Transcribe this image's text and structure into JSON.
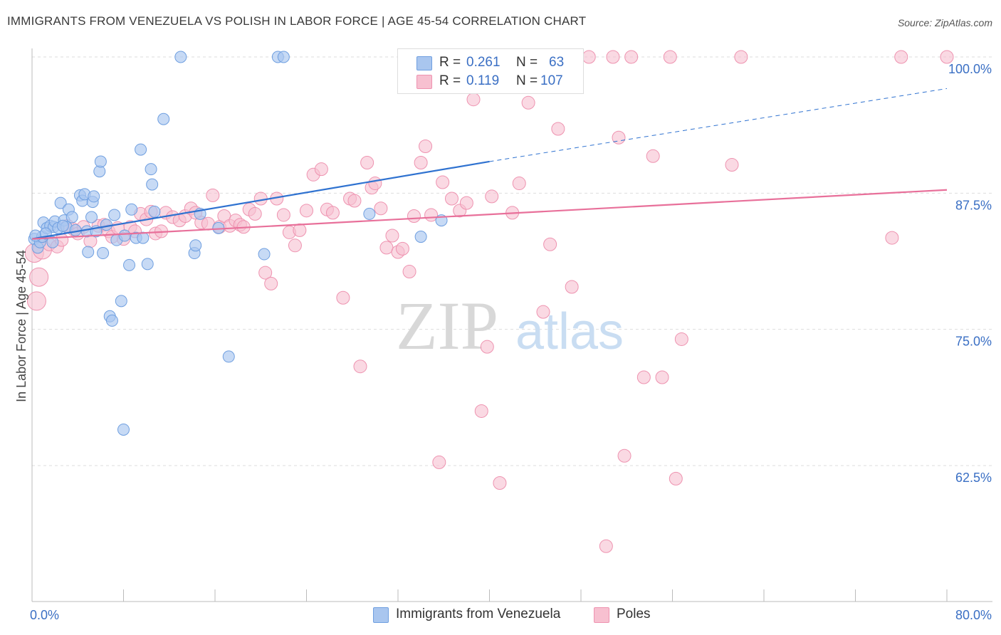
{
  "title": "IMMIGRANTS FROM VENEZUELA VS POLISH IN LABOR FORCE | AGE 45-54 CORRELATION CHART",
  "source": "Source: ZipAtlas.com",
  "watermark": {
    "zip": "ZIP",
    "atlas": "atlas"
  },
  "legend": {
    "row1": {
      "r_label": "R =",
      "r_value": "0.261",
      "n_label": "N =",
      "n_value": "63"
    },
    "row2": {
      "r_label": "R =",
      "r_value": "0.119",
      "n_label": "N =",
      "n_value": "107"
    }
  },
  "bottom_legend": {
    "series1": "Immigrants from Venezuela",
    "series2": "Poles"
  },
  "colors": {
    "blue_fill": "#a9c6ef",
    "blue_stroke": "#6f9fe0",
    "blue_line": "#2f72d0",
    "pink_fill": "#f7c0d0",
    "pink_stroke": "#ee93b0",
    "pink_line": "#e8709a",
    "tick_label": "#3a6fc4",
    "grid": "#dddddd"
  },
  "chart_data": {
    "type": "scatter",
    "xlabel": "",
    "ylabel": "In Labor Force | Age 45-54",
    "xlim": [
      0,
      80
    ],
    "ylim": [
      50,
      101.5
    ],
    "x_tick_labels": [
      "0.0%",
      "80.0%"
    ],
    "y_ticks": [
      62.5,
      75.0,
      87.5,
      100.0
    ],
    "y_tick_labels": [
      "62.5%",
      "75.0%",
      "87.5%",
      "100.0%"
    ],
    "grid": "horizontal dashed",
    "legend_position": "top-center",
    "series": [
      {
        "name": "Immigrants from Venezuela",
        "color": "#a9c6ef",
        "r": 0.261,
        "n": 63,
        "trend": {
          "x": [
            0,
            40
          ],
          "y": [
            83.3,
            90.4
          ],
          "dashed_to": [
            80,
            97.1
          ]
        },
        "points": [
          [
            0.2,
            83.3
          ],
          [
            0.5,
            82.5
          ],
          [
            0.7,
            83.0
          ],
          [
            0.9,
            83.5
          ],
          [
            1.0,
            84.8
          ],
          [
            1.3,
            84.3
          ],
          [
            1.6,
            84.5
          ],
          [
            1.8,
            83.0
          ],
          [
            1.9,
            84.4
          ],
          [
            2.0,
            84.9
          ],
          [
            2.3,
            84.3
          ],
          [
            2.5,
            86.6
          ],
          [
            2.8,
            85.0
          ],
          [
            3.0,
            84.4
          ],
          [
            3.2,
            86.0
          ],
          [
            3.5,
            85.3
          ],
          [
            3.8,
            84.1
          ],
          [
            4.2,
            87.3
          ],
          [
            4.4,
            86.8
          ],
          [
            4.6,
            87.4
          ],
          [
            4.8,
            84.0
          ],
          [
            4.9,
            82.1
          ],
          [
            5.2,
            85.3
          ],
          [
            5.3,
            86.7
          ],
          [
            5.4,
            87.2
          ],
          [
            5.6,
            84.0
          ],
          [
            5.9,
            89.5
          ],
          [
            6.0,
            90.4
          ],
          [
            6.2,
            82.0
          ],
          [
            6.5,
            84.6
          ],
          [
            6.8,
            76.2
          ],
          [
            7.0,
            75.8
          ],
          [
            7.2,
            85.5
          ],
          [
            7.4,
            83.2
          ],
          [
            7.8,
            77.6
          ],
          [
            8.0,
            65.8
          ],
          [
            8.1,
            83.6
          ],
          [
            8.5,
            80.9
          ],
          [
            8.7,
            86.0
          ],
          [
            9.1,
            83.4
          ],
          [
            9.5,
            91.5
          ],
          [
            9.7,
            83.4
          ],
          [
            10.1,
            81.0
          ],
          [
            10.4,
            89.7
          ],
          [
            10.5,
            88.3
          ],
          [
            10.7,
            85.8
          ],
          [
            11.5,
            94.3
          ],
          [
            13.0,
            100.0
          ],
          [
            14.2,
            82.0
          ],
          [
            14.3,
            82.7
          ],
          [
            14.7,
            85.6
          ],
          [
            16.3,
            84.3
          ],
          [
            17.2,
            72.5
          ],
          [
            20.3,
            81.9
          ],
          [
            21.5,
            100.0
          ],
          [
            22.0,
            100.0
          ],
          [
            29.5,
            85.6
          ],
          [
            34.0,
            83.5
          ],
          [
            35.8,
            85.0
          ],
          [
            36.5,
            97.3
          ],
          [
            0.3,
            83.6
          ],
          [
            1.2,
            83.8
          ],
          [
            2.7,
            84.5
          ]
        ]
      },
      {
        "name": "Poles",
        "color": "#f7c0d0",
        "r": 0.119,
        "n": 107,
        "trend": {
          "x": [
            0,
            80
          ],
          "y": [
            83.3,
            87.8
          ]
        },
        "points": [
          [
            0.2,
            82.0
          ],
          [
            0.4,
            77.6
          ],
          [
            0.6,
            79.8
          ],
          [
            0.9,
            82.3
          ],
          [
            1.5,
            82.8
          ],
          [
            2.2,
            82.6
          ],
          [
            2.6,
            83.2
          ],
          [
            3.1,
            84.5
          ],
          [
            3.6,
            84.2
          ],
          [
            4.0,
            83.8
          ],
          [
            4.5,
            84.4
          ],
          [
            5.1,
            83.1
          ],
          [
            5.8,
            84.5
          ],
          [
            6.3,
            84.6
          ],
          [
            6.7,
            84.0
          ],
          [
            7.0,
            83.5
          ],
          [
            7.5,
            84.3
          ],
          [
            8.0,
            83.3
          ],
          [
            8.6,
            84.4
          ],
          [
            9.0,
            84.0
          ],
          [
            9.5,
            85.6
          ],
          [
            10.0,
            85.1
          ],
          [
            10.4,
            85.8
          ],
          [
            10.8,
            83.8
          ],
          [
            11.3,
            84.0
          ],
          [
            11.7,
            85.7
          ],
          [
            12.3,
            85.3
          ],
          [
            12.9,
            85.0
          ],
          [
            13.4,
            85.4
          ],
          [
            13.9,
            86.1
          ],
          [
            14.3,
            85.7
          ],
          [
            14.8,
            84.8
          ],
          [
            15.4,
            84.7
          ],
          [
            15.8,
            87.3
          ],
          [
            16.4,
            84.4
          ],
          [
            16.8,
            85.4
          ],
          [
            17.3,
            84.5
          ],
          [
            17.8,
            85.0
          ],
          [
            18.2,
            84.6
          ],
          [
            18.5,
            84.4
          ],
          [
            19.0,
            86.0
          ],
          [
            19.5,
            85.6
          ],
          [
            20.0,
            87.0
          ],
          [
            20.4,
            80.2
          ],
          [
            20.9,
            79.2
          ],
          [
            21.4,
            87.0
          ],
          [
            22.0,
            85.5
          ],
          [
            22.5,
            83.9
          ],
          [
            23.0,
            82.7
          ],
          [
            23.4,
            84.1
          ],
          [
            24.0,
            85.9
          ],
          [
            24.6,
            89.2
          ],
          [
            25.3,
            89.7
          ],
          [
            25.8,
            86.0
          ],
          [
            26.3,
            85.7
          ],
          [
            27.2,
            77.9
          ],
          [
            27.8,
            87.0
          ],
          [
            28.2,
            86.8
          ],
          [
            28.7,
            71.6
          ],
          [
            29.3,
            90.3
          ],
          [
            29.7,
            88.0
          ],
          [
            30.0,
            88.4
          ],
          [
            30.5,
            86.1
          ],
          [
            31.0,
            82.5
          ],
          [
            31.5,
            83.6
          ],
          [
            32.0,
            82.1
          ],
          [
            32.4,
            82.4
          ],
          [
            33.0,
            80.3
          ],
          [
            33.4,
            85.4
          ],
          [
            34.0,
            90.3
          ],
          [
            34.4,
            91.8
          ],
          [
            34.9,
            85.5
          ],
          [
            35.6,
            62.8
          ],
          [
            35.9,
            88.5
          ],
          [
            36.7,
            87.0
          ],
          [
            37.4,
            85.9
          ],
          [
            38.0,
            86.6
          ],
          [
            38.6,
            96.1
          ],
          [
            39.3,
            67.5
          ],
          [
            39.8,
            73.4
          ],
          [
            40.2,
            87.2
          ],
          [
            40.9,
            60.9
          ],
          [
            41.7,
            98.8
          ],
          [
            42.0,
            85.7
          ],
          [
            42.6,
            88.4
          ],
          [
            43.4,
            95.8
          ],
          [
            44.7,
            76.6
          ],
          [
            45.3,
            82.8
          ],
          [
            46.0,
            93.4
          ],
          [
            47.2,
            78.9
          ],
          [
            48.7,
            100.0
          ],
          [
            50.2,
            55.1
          ],
          [
            50.8,
            100.0
          ],
          [
            51.3,
            92.6
          ],
          [
            51.8,
            63.4
          ],
          [
            52.4,
            100.0
          ],
          [
            53.5,
            70.6
          ],
          [
            54.3,
            90.9
          ],
          [
            55.1,
            70.6
          ],
          [
            55.8,
            100.0
          ],
          [
            56.3,
            61.3
          ],
          [
            56.8,
            74.1
          ],
          [
            61.2,
            90.1
          ],
          [
            62.0,
            100.0
          ],
          [
            75.2,
            83.4
          ],
          [
            76.0,
            100.0
          ],
          [
            80.0,
            100.0
          ]
        ]
      }
    ]
  }
}
